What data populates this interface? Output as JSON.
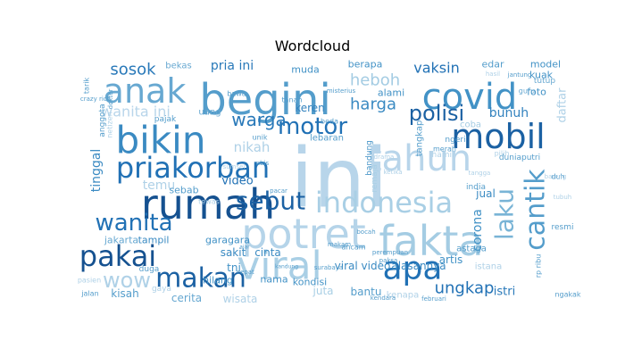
{
  "chart_data": {
    "type": "wordcloud",
    "title": "Wordcloud",
    "colormap": "Blues",
    "background": "#ffffff",
    "words": [
      {
        "text": "ini",
        "weight": 1.0
      },
      {
        "text": "begini",
        "weight": 0.62
      },
      {
        "text": "potret",
        "weight": 0.6
      },
      {
        "text": "rumah",
        "weight": 0.57
      },
      {
        "text": "viral",
        "weight": 0.56
      },
      {
        "text": "fakta",
        "weight": 0.56
      },
      {
        "text": "covid",
        "weight": 0.55
      },
      {
        "text": "bikin",
        "weight": 0.55
      },
      {
        "text": "mobil",
        "weight": 0.5
      },
      {
        "text": "anak",
        "weight": 0.5
      },
      {
        "text": "tahun",
        "weight": 0.48
      },
      {
        "text": "apa",
        "weight": 0.48
      },
      {
        "text": "priakorban",
        "weight": 0.46
      },
      {
        "text": "pakai",
        "weight": 0.42
      },
      {
        "text": "makan",
        "weight": 0.42
      },
      {
        "text": "indonesia",
        "weight": 0.42
      },
      {
        "text": "cantik",
        "weight": 0.4
      },
      {
        "text": "laku",
        "weight": 0.4
      },
      {
        "text": "wanita",
        "weight": 0.38
      },
      {
        "text": "sebut",
        "weight": 0.38
      },
      {
        "text": "motor",
        "weight": 0.37
      },
      {
        "text": "wow",
        "weight": 0.35
      },
      {
        "text": "polisi",
        "weight": 0.33
      },
      {
        "text": "warga",
        "weight": 0.31
      },
      {
        "text": "heboh",
        "weight": 0.3
      },
      {
        "text": "harga",
        "weight": 0.3
      },
      {
        "text": "ungkap",
        "weight": 0.28
      },
      {
        "text": "sosok",
        "weight": 0.28
      },
      {
        "text": "vaksin",
        "weight": 0.28
      },
      {
        "text": "wanita ini",
        "weight": 0.25
      },
      {
        "text": "bunuh",
        "weight": 0.24
      },
      {
        "text": "corona",
        "weight": 0.24
      },
      {
        "text": "nikah",
        "weight": 0.24
      },
      {
        "text": "pria ini",
        "weight": 0.23
      },
      {
        "text": "istri",
        "weight": 0.23
      },
      {
        "text": "video",
        "weight": 0.22
      },
      {
        "text": "temu",
        "weight": 0.22
      },
      {
        "text": "keren",
        "weight": 0.21
      },
      {
        "text": "tinggal",
        "weight": 0.21
      },
      {
        "text": "kisah",
        "weight": 0.21
      },
      {
        "text": "artis",
        "weight": 0.2
      },
      {
        "text": "viral video",
        "weight": 0.2
      },
      {
        "text": "alasannya",
        "weight": 0.2
      },
      {
        "text": "jual",
        "weight": 0.2
      },
      {
        "text": "cerita",
        "weight": 0.19
      },
      {
        "text": "wisata",
        "weight": 0.19
      },
      {
        "text": "bantu",
        "weight": 0.19
      },
      {
        "text": "kenapa",
        "weight": 0.18
      },
      {
        "text": "sakit",
        "weight": 0.18
      },
      {
        "text": "cinta",
        "weight": 0.18
      },
      {
        "text": "juta",
        "weight": 0.18
      },
      {
        "text": "tni",
        "weight": 0.17
      },
      {
        "text": "nama",
        "weight": 0.17
      },
      {
        "text": "kondisi",
        "weight": 0.17
      },
      {
        "text": "sebab",
        "weight": 0.16
      },
      {
        "text": "tampil",
        "weight": 0.16
      },
      {
        "text": "hilang",
        "weight": 0.16
      },
      {
        "text": "garagara",
        "weight": 0.16
      },
      {
        "text": "jakarta",
        "weight": 0.16
      },
      {
        "text": "foto",
        "weight": 0.16
      },
      {
        "text": "model",
        "weight": 0.15
      },
      {
        "text": "kuak",
        "weight": 0.15
      },
      {
        "text": "berapa",
        "weight": 0.15
      },
      {
        "text": "muda",
        "weight": 0.15
      },
      {
        "text": "bekas",
        "weight": 0.14
      },
      {
        "text": "uang",
        "weight": 0.14
      },
      {
        "text": "alami",
        "weight": 0.15
      },
      {
        "text": "lebaran",
        "weight": 0.15
      },
      {
        "text": "tangkap",
        "weight": 0.15
      },
      {
        "text": "daftar",
        "weight": 0.16
      },
      {
        "text": "edar",
        "weight": 0.14
      },
      {
        "text": "tutup",
        "weight": 0.13
      },
      {
        "text": "guru",
        "weight": 0.12
      },
      {
        "text": "coba",
        "weight": 0.13
      },
      {
        "text": "hamil",
        "weight": 0.12
      },
      {
        "text": "india",
        "weight": 0.12
      },
      {
        "text": "bandung",
        "weight": 0.12
      },
      {
        "text": "remaja",
        "weight": 0.12
      },
      {
        "text": "duniaputri",
        "weight": 0.12
      },
      {
        "text": "pilih",
        "weight": 0.1
      },
      {
        "text": "ngeri",
        "weight": 0.12
      },
      {
        "text": "merah",
        "weight": 0.1
      },
      {
        "text": "pajak",
        "weight": 0.1
      },
      {
        "text": "anggota",
        "weight": 0.1
      },
      {
        "text": "netizen",
        "weight": 0.1
      },
      {
        "text": "duga",
        "weight": 0.1
      },
      {
        "text": "jalan",
        "weight": 0.1
      },
      {
        "text": "pasien",
        "weight": 0.1
      },
      {
        "text": "gaya",
        "weight": 0.1
      },
      {
        "text": "ancam",
        "weight": 0.1
      },
      {
        "text": "istana",
        "weight": 0.11
      },
      {
        "text": "astaga",
        "weight": 0.11
      },
      {
        "text": "rp ribu",
        "weight": 0.1
      },
      {
        "text": "resmi",
        "weight": 0.1
      },
      {
        "text": "ngakak",
        "weight": 0.1
      },
      {
        "text": "tubuh",
        "weight": 0.09
      },
      {
        "text": "duh",
        "weight": 0.09
      },
      {
        "text": "unik",
        "weight": 0.1
      },
      {
        "text": "beda",
        "weight": 0.09
      },
      {
        "text": "tewas",
        "weight": 0.09
      },
      {
        "text": "crazy rich",
        "weight": 0.09
      },
      {
        "text": "dokter",
        "weight": 0.09
      },
      {
        "text": "tarik",
        "weight": 0.09
      },
      {
        "text": "bawa",
        "weight": 0.09
      },
      {
        "text": "tanah",
        "weight": 0.09
      },
      {
        "text": "misterius",
        "weight": 0.09
      },
      {
        "text": "makam",
        "weight": 0.09
      },
      {
        "text": "kandung",
        "weight": 0.09
      },
      {
        "text": "ajar",
        "weight": 0.09
      },
      {
        "text": "cepat",
        "weight": 0.09
      },
      {
        "text": "surabaya",
        "weight": 0.09
      },
      {
        "text": "paksa",
        "weight": 0.09
      },
      {
        "text": "bocah",
        "weight": 0.09
      },
      {
        "text": "perempuan",
        "weight": 0.09
      },
      {
        "text": "kendara",
        "weight": 0.09
      },
      {
        "text": "februari",
        "weight": 0.09
      },
      {
        "text": "tangga",
        "weight": 0.09
      },
      {
        "text": "ketika",
        "weight": 0.09
      },
      {
        "text": "sumsel",
        "weight": 0.08
      },
      {
        "text": "abis",
        "weight": 0.08
      },
      {
        "text": "pacar",
        "weight": 0.08
      },
      {
        "text": "drama",
        "weight": 0.08
      },
      {
        "text": "jantung",
        "weight": 0.08
      },
      {
        "text": "hasil",
        "weight": 0.08
      },
      {
        "text": "bareng",
        "weight": 0.08
      },
      {
        "text": "ting",
        "weight": 0.08
      },
      {
        "text": "gara",
        "weight": 0.08
      }
    ]
  }
}
